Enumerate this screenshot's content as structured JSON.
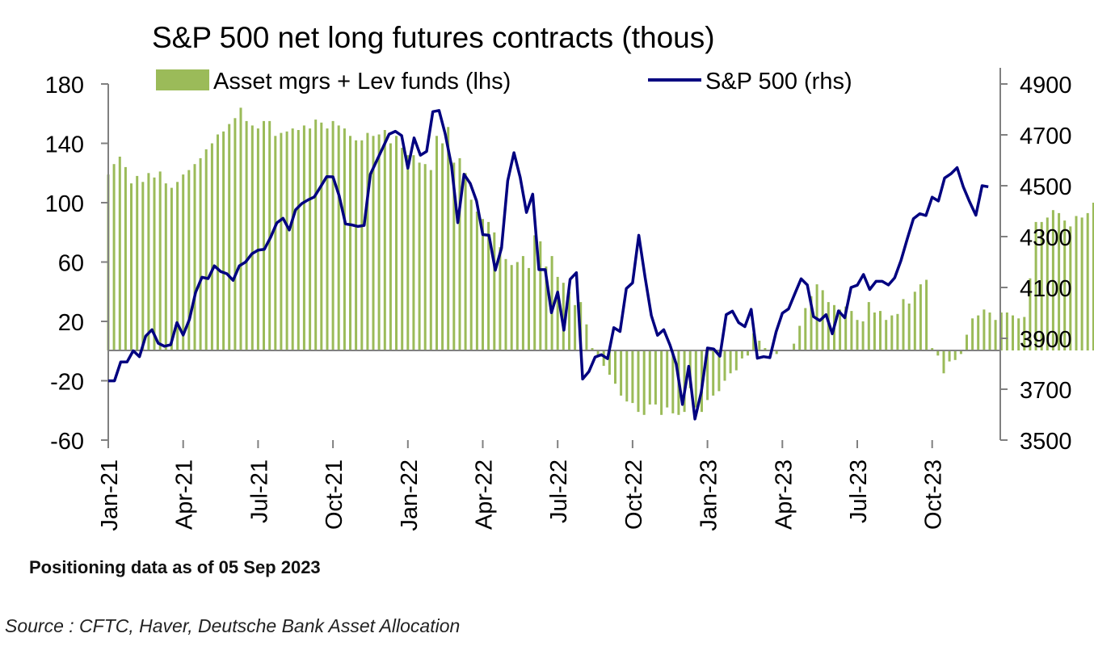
{
  "chart_data": {
    "type": "bar+line",
    "title": "S&P 500 net long futures contracts  (thous)",
    "note": "Positioning data as of 05 Sep 2023",
    "source": "Source : CFTC, Haver, Deutsche Bank Asset Allocation",
    "colors": {
      "bars": "#9bbb59",
      "line": "#000080",
      "axis": "#808080"
    },
    "left_axis": {
      "ylim": [
        -60,
        180
      ],
      "ticks": [
        180,
        140,
        100,
        60,
        20,
        -20,
        -60
      ]
    },
    "right_axis": {
      "ylim": [
        3500,
        4900
      ],
      "ticks": [
        4900,
        4700,
        4500,
        4300,
        4100,
        3900,
        3700,
        3500
      ]
    },
    "x_ticks": [
      "Jan-21",
      "Apr-21",
      "Jul-21",
      "Oct-21",
      "Jan-22",
      "Apr-22",
      "Jul-22",
      "Oct-22",
      "Jan-23",
      "Apr-23",
      "Jul-23",
      "Oct-23"
    ],
    "x_range_months": [
      0,
      33
    ],
    "series": [
      {
        "name": "Asset mgrs + Lev funds (lhs)",
        "type": "bar",
        "axis": "left",
        "x_months_start": 0,
        "x_step_weeks": 1,
        "values": [
          119,
          126,
          131,
          124,
          113,
          118,
          114,
          120,
          117,
          121,
          113,
          110,
          114,
          119,
          122,
          126,
          130,
          136,
          140,
          146,
          148,
          153,
          157,
          164,
          155,
          152,
          150,
          155,
          155,
          145,
          147,
          148,
          150,
          149,
          152,
          150,
          156,
          154,
          150,
          155,
          152,
          150,
          145,
          142,
          142,
          147,
          145,
          146,
          149,
          140,
          145,
          137,
          132,
          132,
          127,
          126,
          122,
          145,
          140,
          151,
          127,
          130,
          120,
          102,
          94,
          89,
          87,
          80,
          70,
          62,
          58,
          60,
          64,
          56,
          78,
          74,
          57,
          64,
          50,
          46,
          40,
          31,
          33,
          18,
          2,
          -3,
          -10,
          -16,
          -22,
          -30,
          -34,
          -35,
          -41,
          -43,
          -36,
          -36,
          -43,
          -38,
          -42,
          -43,
          -41,
          -25,
          -38,
          -41,
          -33,
          -30,
          -27,
          -20,
          -15,
          -13,
          -5,
          -3,
          12,
          7,
          2,
          1,
          -2,
          0,
          0,
          5,
          17,
          29,
          37,
          45,
          41,
          33,
          31,
          28,
          30,
          27,
          21,
          20,
          33,
          26,
          27,
          21,
          24,
          25,
          35,
          32,
          40,
          45,
          48,
          2,
          -3,
          -15,
          -7,
          -6,
          -2,
          11,
          22,
          24,
          28,
          26,
          21,
          26,
          26,
          24,
          22,
          23,
          49,
          87,
          87,
          90,
          95,
          93,
          88,
          84,
          91,
          90,
          93,
          100,
          88,
          87,
          91
        ]
      },
      {
        "name": "S&P 500 (rhs)",
        "type": "line",
        "axis": "right",
        "points": [
          [
            0.0,
            3733
          ],
          [
            0.25,
            3733
          ],
          [
            0.5,
            3807
          ],
          [
            0.75,
            3807
          ],
          [
            1.0,
            3851
          ],
          [
            1.25,
            3828
          ],
          [
            1.5,
            3909
          ],
          [
            1.75,
            3934
          ],
          [
            2.0,
            3881
          ],
          [
            2.25,
            3869
          ],
          [
            2.5,
            3875
          ],
          [
            2.75,
            3962
          ],
          [
            3.0,
            3913
          ],
          [
            3.25,
            3974
          ],
          [
            3.5,
            4081
          ],
          [
            3.75,
            4140
          ],
          [
            4.0,
            4135
          ],
          [
            4.25,
            4185
          ],
          [
            4.5,
            4163
          ],
          [
            4.75,
            4154
          ],
          [
            5.0,
            4128
          ],
          [
            5.25,
            4185
          ],
          [
            5.5,
            4200
          ],
          [
            5.75,
            4232
          ],
          [
            6.0,
            4247
          ],
          [
            6.25,
            4250
          ],
          [
            6.5,
            4297
          ],
          [
            6.75,
            4354
          ],
          [
            7.0,
            4372
          ],
          [
            7.25,
            4326
          ],
          [
            7.5,
            4405
          ],
          [
            7.75,
            4430
          ],
          [
            8.0,
            4444
          ],
          [
            8.25,
            4456
          ],
          [
            8.5,
            4495
          ],
          [
            8.75,
            4536
          ],
          [
            9.0,
            4535
          ],
          [
            9.25,
            4460
          ],
          [
            9.5,
            4350
          ],
          [
            9.75,
            4346
          ],
          [
            10.0,
            4340
          ],
          [
            10.25,
            4344
          ],
          [
            10.5,
            4545
          ],
          [
            10.75,
            4598
          ],
          [
            11.0,
            4650
          ],
          [
            11.25,
            4703
          ],
          [
            11.5,
            4714
          ],
          [
            11.75,
            4697
          ],
          [
            12.0,
            4569
          ],
          [
            12.25,
            4688
          ],
          [
            12.5,
            4620
          ],
          [
            12.75,
            4635
          ],
          [
            13.0,
            4791
          ],
          [
            13.25,
            4796
          ],
          [
            13.5,
            4703
          ],
          [
            13.75,
            4577
          ],
          [
            14.0,
            4355
          ],
          [
            14.25,
            4545
          ],
          [
            14.5,
            4509
          ],
          [
            14.75,
            4440
          ],
          [
            15.0,
            4308
          ],
          [
            15.25,
            4305
          ],
          [
            15.5,
            4168
          ],
          [
            15.75,
            4255
          ],
          [
            16.0,
            4520
          ],
          [
            16.25,
            4630
          ],
          [
            16.5,
            4533
          ],
          [
            16.75,
            4395
          ],
          [
            17.0,
            4467
          ],
          [
            17.25,
            4170
          ],
          [
            17.5,
            4170
          ],
          [
            17.75,
            4001
          ],
          [
            18.0,
            4082
          ],
          [
            18.25,
            3932
          ],
          [
            18.5,
            4132
          ],
          [
            18.75,
            4158
          ],
          [
            19.0,
            3740
          ],
          [
            19.25,
            3769
          ],
          [
            19.5,
            3826
          ],
          [
            19.75,
            3836
          ],
          [
            20.0,
            3820
          ],
          [
            20.25,
            3942
          ],
          [
            20.5,
            3927
          ],
          [
            20.75,
            4096
          ],
          [
            21.0,
            4118
          ],
          [
            21.25,
            4305
          ],
          [
            21.5,
            4140
          ],
          [
            21.75,
            3990
          ],
          [
            22.0,
            3912
          ],
          [
            22.25,
            3934
          ],
          [
            22.5,
            3873
          ],
          [
            22.75,
            3798
          ],
          [
            23.0,
            3640
          ],
          [
            23.25,
            3790
          ],
          [
            23.5,
            3583
          ],
          [
            23.75,
            3688
          ],
          [
            24.0,
            3862
          ],
          [
            24.25,
            3858
          ],
          [
            24.5,
            3830
          ],
          [
            24.75,
            3993
          ],
          [
            25.0,
            4007
          ],
          [
            25.25,
            3962
          ],
          [
            25.5,
            3946
          ],
          [
            25.75,
            4014
          ],
          [
            26.0,
            3822
          ],
          [
            26.25,
            3828
          ],
          [
            26.5,
            3824
          ],
          [
            26.75,
            3926
          ],
          [
            27.0,
            3999
          ],
          [
            27.25,
            4016
          ],
          [
            27.5,
            4076
          ],
          [
            27.75,
            4134
          ],
          [
            28.0,
            4110
          ],
          [
            28.25,
            3985
          ],
          [
            28.5,
            3970
          ],
          [
            28.75,
            3993
          ],
          [
            29.0,
            3918
          ],
          [
            29.25,
            4008
          ],
          [
            29.5,
            3981
          ],
          [
            29.75,
            4100
          ],
          [
            30.0,
            4109
          ],
          [
            30.25,
            4151
          ],
          [
            30.5,
            4092
          ],
          [
            30.75,
            4124
          ],
          [
            31.0,
            4124
          ],
          [
            31.25,
            4110
          ],
          [
            31.5,
            4138
          ],
          [
            31.75,
            4206
          ],
          [
            32.0,
            4290
          ],
          [
            32.25,
            4370
          ],
          [
            32.5,
            4390
          ],
          [
            32.75,
            4383
          ],
          [
            33.0,
            4455
          ],
          [
            33.25,
            4440
          ],
          [
            33.5,
            4530
          ],
          [
            33.75,
            4547
          ],
          [
            34.0,
            4571
          ],
          [
            34.25,
            4495
          ],
          [
            34.5,
            4437
          ],
          [
            34.75,
            4384
          ],
          [
            35.0,
            4500
          ],
          [
            35.25,
            4496
          ]
        ]
      }
    ]
  }
}
